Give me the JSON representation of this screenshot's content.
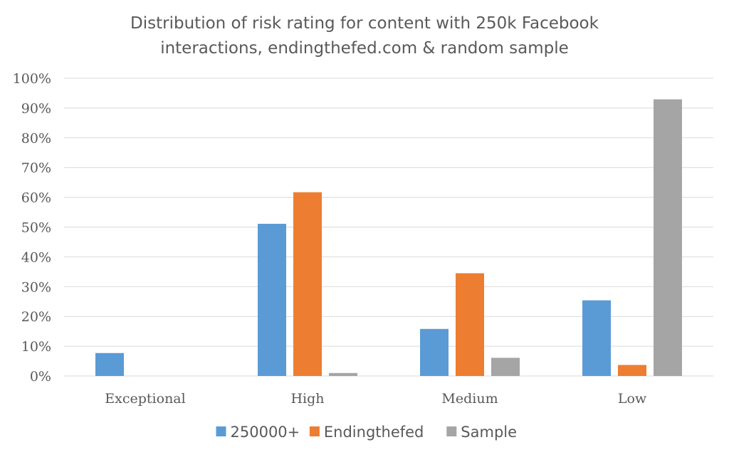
{
  "chart_data": {
    "type": "bar",
    "title": "Distribution of risk rating for content with 250k Facebook interactions, endingthefed.com & random sample",
    "title_lines": [
      "Distribution of risk rating for content with 250k Facebook",
      "interactions, endingthefed.com & random sample"
    ],
    "xlabel": "",
    "ylabel": "",
    "categories": [
      "Exceptional",
      "High",
      "Medium",
      "Low"
    ],
    "ylim": [
      0,
      100
    ],
    "ytick_values": [
      0,
      10,
      20,
      30,
      40,
      50,
      60,
      70,
      80,
      90,
      100
    ],
    "ytick_labels": [
      "0%",
      "10%",
      "20%",
      "30%",
      "40%",
      "50%",
      "60%",
      "70%",
      "80%",
      "90%",
      "100%"
    ],
    "grid": true,
    "legend_position": "bottom",
    "series": [
      {
        "name": "250000+",
        "color": "#5b9bd5",
        "values": [
          7.7,
          51.1,
          15.8,
          25.4
        ]
      },
      {
        "name": "Endingthefed",
        "color": "#ed7d31",
        "values": [
          0,
          61.7,
          34.5,
          3.7
        ]
      },
      {
        "name": "Sample",
        "color": "#a5a5a5",
        "values": [
          0,
          1.0,
          6.1,
          92.9
        ]
      }
    ]
  }
}
